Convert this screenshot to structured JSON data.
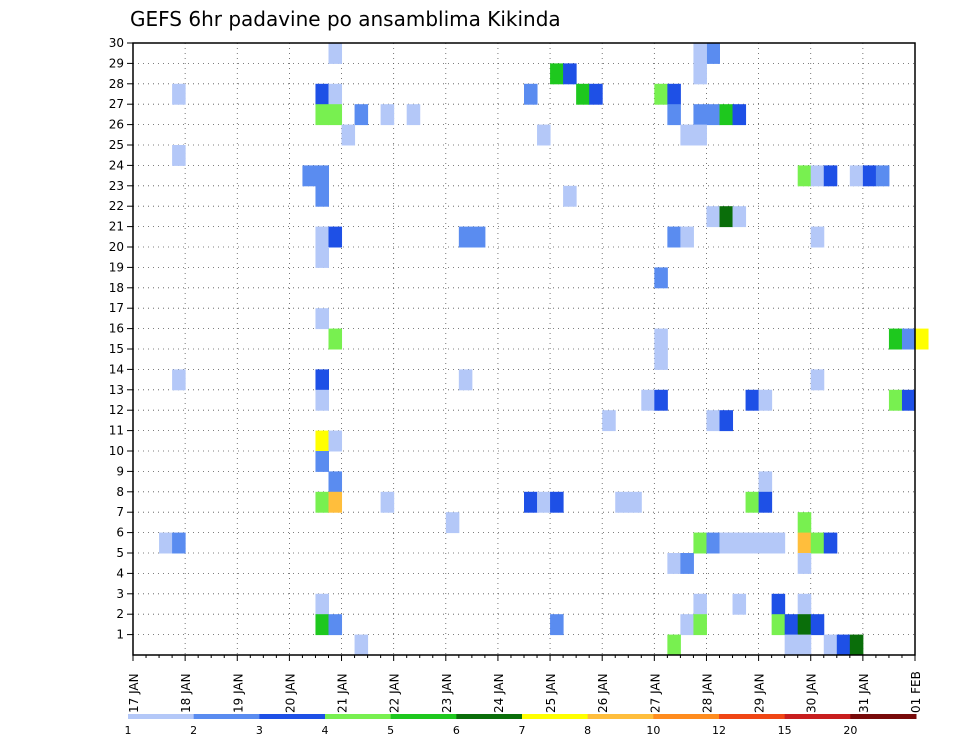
{
  "chart_data": {
    "type": "heatmap",
    "title": "GEFS 6hr padavine po ansamblima Kikinda",
    "xlabel": "",
    "ylabel": "",
    "x_ticks": [
      "17 JAN",
      "18 JAN",
      "19 JAN",
      "20 JAN",
      "21 JAN",
      "22 JAN",
      "23 JAN",
      "24 JAN",
      "25 JAN",
      "26 JAN",
      "27 JAN",
      "28 JAN",
      "29 JAN",
      "30 JAN",
      "31 JAN",
      "01 FEB"
    ],
    "xlim": [
      "17 JAN 00Z",
      "01 FEB 00Z"
    ],
    "x_step_hours": 6,
    "y_ticks": [
      "1",
      "2",
      "3",
      "4",
      "5",
      "6",
      "7",
      "8",
      "9",
      "10",
      "11",
      "12",
      "13",
      "14",
      "15",
      "16",
      "17",
      "18",
      "19",
      "20",
      "21",
      "22",
      "23",
      "24",
      "25",
      "26",
      "27",
      "28",
      "29",
      "30"
    ],
    "ylim": [
      0,
      30
    ],
    "grid": true,
    "legend": {
      "placement": "bottom",
      "labels": [
        "1",
        "2",
        "3",
        "4",
        "5",
        "6",
        "7",
        "8",
        "10",
        "12",
        "15",
        "20"
      ],
      "colors": [
        "#b4c8f8",
        "#5a8cf0",
        "#1e50e6",
        "#78f050",
        "#1ec81e",
        "#0a6e0a",
        "#ffff00",
        "#ffbe3c",
        "#ff8c1e",
        "#f04614",
        "#c81e1e",
        "#780a0a"
      ]
    },
    "cells": [
      {
        "m": 29,
        "x": "20 JAN 18Z",
        "c": 1
      },
      {
        "m": 29,
        "x": "28 JAN 00Z",
        "c": 2
      },
      {
        "m": 29,
        "x": "27 JAN 18Z",
        "c": 1
      },
      {
        "m": 28,
        "x": "25 JAN 00Z",
        "c": 5
      },
      {
        "m": 28,
        "x": "25 JAN 06Z",
        "c": 3
      },
      {
        "m": 28,
        "x": "27 JAN 18Z",
        "c": 1
      },
      {
        "m": 27,
        "x": "17 JAN 18Z",
        "c": 1
      },
      {
        "m": 27,
        "x": "20 JAN 12Z",
        "c": 3
      },
      {
        "m": 27,
        "x": "20 JAN 18Z",
        "c": 1
      },
      {
        "m": 27,
        "x": "24 JAN 12Z",
        "c": 2
      },
      {
        "m": 27,
        "x": "25 JAN 12Z",
        "c": 5
      },
      {
        "m": 27,
        "x": "25 JAN 18Z",
        "c": 3
      },
      {
        "m": 27,
        "x": "27 JAN 00Z",
        "c": 4
      },
      {
        "m": 27,
        "x": "27 JAN 06Z",
        "c": 3
      },
      {
        "m": 26,
        "x": "20 JAN 12Z",
        "c": 4
      },
      {
        "m": 26,
        "x": "20 JAN 18Z",
        "c": 4
      },
      {
        "m": 26,
        "x": "21 JAN 06Z",
        "c": 2
      },
      {
        "m": 26,
        "x": "21 JAN 18Z",
        "c": 1
      },
      {
        "m": 26,
        "x": "22 JAN 06Z",
        "c": 1
      },
      {
        "m": 26,
        "x": "27 JAN 06Z",
        "c": 2
      },
      {
        "m": 26,
        "x": "27 JAN 18Z",
        "c": 2
      },
      {
        "m": 26,
        "x": "28 JAN 00Z",
        "c": 2
      },
      {
        "m": 26,
        "x": "28 JAN 06Z",
        "c": 5
      },
      {
        "m": 26,
        "x": "28 JAN 12Z",
        "c": 3
      },
      {
        "m": 25,
        "x": "21 JAN 00Z",
        "c": 1
      },
      {
        "m": 25,
        "x": "24 JAN 18Z",
        "c": 1
      },
      {
        "m": 25,
        "x": "27 JAN 12Z",
        "c": 1
      },
      {
        "m": 25,
        "x": "27 JAN 18Z",
        "c": 1
      },
      {
        "m": 24,
        "x": "17 JAN 18Z",
        "c": 1
      },
      {
        "m": 23,
        "x": "20 JAN 06Z",
        "c": 2
      },
      {
        "m": 23,
        "x": "20 JAN 12Z",
        "c": 2
      },
      {
        "m": 23,
        "x": "29 JAN 18Z",
        "c": 4
      },
      {
        "m": 23,
        "x": "30 JAN 00Z",
        "c": 1
      },
      {
        "m": 23,
        "x": "30 JAN 06Z",
        "c": 3
      },
      {
        "m": 23,
        "x": "30 JAN 18Z",
        "c": 1
      },
      {
        "m": 23,
        "x": "31 JAN 00Z",
        "c": 3
      },
      {
        "m": 23,
        "x": "31 JAN 06Z",
        "c": 2
      },
      {
        "m": 22,
        "x": "20 JAN 12Z",
        "c": 2
      },
      {
        "m": 22,
        "x": "25 JAN 06Z",
        "c": 1
      },
      {
        "m": 21,
        "x": "28 JAN 00Z",
        "c": 1
      },
      {
        "m": 21,
        "x": "28 JAN 06Z",
        "c": 6
      },
      {
        "m": 21,
        "x": "28 JAN 12Z",
        "c": 1
      },
      {
        "m": 20,
        "x": "20 JAN 12Z",
        "c": 1
      },
      {
        "m": 20,
        "x": "20 JAN 18Z",
        "c": 3
      },
      {
        "m": 20,
        "x": "23 JAN 06Z",
        "c": 2
      },
      {
        "m": 20,
        "x": "23 JAN 12Z",
        "c": 2
      },
      {
        "m": 20,
        "x": "27 JAN 06Z",
        "c": 2
      },
      {
        "m": 20,
        "x": "27 JAN 12Z",
        "c": 1
      },
      {
        "m": 20,
        "x": "30 JAN 00Z",
        "c": 1
      },
      {
        "m": 19,
        "x": "20 JAN 12Z",
        "c": 1
      },
      {
        "m": 18,
        "x": "27 JAN 00Z",
        "c": 2
      },
      {
        "m": 16,
        "x": "20 JAN 12Z",
        "c": 1
      },
      {
        "m": 15,
        "x": "20 JAN 18Z",
        "c": 4
      },
      {
        "m": 15,
        "x": "27 JAN 00Z",
        "c": 1
      },
      {
        "m": 15,
        "x": "31 JAN 12Z",
        "c": 5
      },
      {
        "m": 15,
        "x": "31 JAN 18Z",
        "c": 2
      },
      {
        "m": 15,
        "x": "01 FEB 00Z",
        "c": 7
      },
      {
        "m": 14,
        "x": "27 JAN 00Z",
        "c": 1
      },
      {
        "m": 13,
        "x": "17 JAN 18Z",
        "c": 1
      },
      {
        "m": 13,
        "x": "20 JAN 12Z",
        "c": 3
      },
      {
        "m": 13,
        "x": "23 JAN 06Z",
        "c": 1
      },
      {
        "m": 13,
        "x": "30 JAN 00Z",
        "c": 1
      },
      {
        "m": 12,
        "x": "20 JAN 12Z",
        "c": 1
      },
      {
        "m": 12,
        "x": "26 JAN 18Z",
        "c": 1
      },
      {
        "m": 12,
        "x": "27 JAN 00Z",
        "c": 3
      },
      {
        "m": 12,
        "x": "28 JAN 18Z",
        "c": 3
      },
      {
        "m": 12,
        "x": "29 JAN 00Z",
        "c": 1
      },
      {
        "m": 12,
        "x": "31 JAN 12Z",
        "c": 4
      },
      {
        "m": 12,
        "x": "31 JAN 18Z",
        "c": 3
      },
      {
        "m": 11,
        "x": "26 JAN 00Z",
        "c": 1
      },
      {
        "m": 11,
        "x": "28 JAN 00Z",
        "c": 1
      },
      {
        "m": 11,
        "x": "28 JAN 06Z",
        "c": 3
      },
      {
        "m": 10,
        "x": "20 JAN 12Z",
        "c": 7
      },
      {
        "m": 10,
        "x": "20 JAN 18Z",
        "c": 1
      },
      {
        "m": 9,
        "x": "20 JAN 12Z",
        "c": 2
      },
      {
        "m": 8,
        "x": "20 JAN 18Z",
        "c": 2
      },
      {
        "m": 8,
        "x": "29 JAN 00Z",
        "c": 1
      },
      {
        "m": 7,
        "x": "20 JAN 12Z",
        "c": 4
      },
      {
        "m": 7,
        "x": "20 JAN 18Z",
        "c": 8
      },
      {
        "m": 7,
        "x": "21 JAN 18Z",
        "c": 1
      },
      {
        "m": 7,
        "x": "24 JAN 12Z",
        "c": 3
      },
      {
        "m": 7,
        "x": "24 JAN 18Z",
        "c": 1
      },
      {
        "m": 7,
        "x": "25 JAN 00Z",
        "c": 3
      },
      {
        "m": 7,
        "x": "26 JAN 06Z",
        "c": 1
      },
      {
        "m": 7,
        "x": "26 JAN 12Z",
        "c": 1
      },
      {
        "m": 7,
        "x": "28 JAN 18Z",
        "c": 4
      },
      {
        "m": 7,
        "x": "29 JAN 00Z",
        "c": 3
      },
      {
        "m": 6,
        "x": "23 JAN 00Z",
        "c": 1
      },
      {
        "m": 6,
        "x": "29 JAN 18Z",
        "c": 4
      },
      {
        "m": 5,
        "x": "17 JAN 12Z",
        "c": 1
      },
      {
        "m": 5,
        "x": "17 JAN 18Z",
        "c": 2
      },
      {
        "m": 5,
        "x": "27 JAN 18Z",
        "c": 4
      },
      {
        "m": 5,
        "x": "28 JAN 00Z",
        "c": 2
      },
      {
        "m": 5,
        "x": "28 JAN 06Z",
        "c": 1
      },
      {
        "m": 5,
        "x": "28 JAN 12Z",
        "c": 1
      },
      {
        "m": 5,
        "x": "28 JAN 18Z",
        "c": 1
      },
      {
        "m": 5,
        "x": "29 JAN 00Z",
        "c": 1
      },
      {
        "m": 5,
        "x": "29 JAN 06Z",
        "c": 1
      },
      {
        "m": 5,
        "x": "29 JAN 18Z",
        "c": 8
      },
      {
        "m": 5,
        "x": "30 JAN 00Z",
        "c": 4
      },
      {
        "m": 5,
        "x": "30 JAN 06Z",
        "c": 3
      },
      {
        "m": 4,
        "x": "27 JAN 06Z",
        "c": 1
      },
      {
        "m": 4,
        "x": "27 JAN 12Z",
        "c": 2
      },
      {
        "m": 4,
        "x": "29 JAN 18Z",
        "c": 1
      },
      {
        "m": 2,
        "x": "20 JAN 12Z",
        "c": 1
      },
      {
        "m": 2,
        "x": "27 JAN 18Z",
        "c": 1
      },
      {
        "m": 2,
        "x": "28 JAN 12Z",
        "c": 1
      },
      {
        "m": 2,
        "x": "29 JAN 06Z",
        "c": 3
      },
      {
        "m": 2,
        "x": "29 JAN 18Z",
        "c": 1
      },
      {
        "m": 1,
        "x": "20 JAN 12Z",
        "c": 5
      },
      {
        "m": 1,
        "x": "20 JAN 18Z",
        "c": 2
      },
      {
        "m": 1,
        "x": "25 JAN 00Z",
        "c": 2
      },
      {
        "m": 1,
        "x": "27 JAN 12Z",
        "c": 1
      },
      {
        "m": 1,
        "x": "27 JAN 18Z",
        "c": 4
      },
      {
        "m": 1,
        "x": "29 JAN 06Z",
        "c": 4
      },
      {
        "m": 1,
        "x": "29 JAN 12Z",
        "c": 3
      },
      {
        "m": 1,
        "x": "29 JAN 18Z",
        "c": 6
      },
      {
        "m": 1,
        "x": "30 JAN 00Z",
        "c": 3
      },
      {
        "m": 0,
        "x": "21 JAN 06Z",
        "c": 1
      },
      {
        "m": 0,
        "x": "27 JAN 06Z",
        "c": 4
      },
      {
        "m": 0,
        "x": "29 JAN 12Z",
        "c": 1
      },
      {
        "m": 0,
        "x": "29 JAN 18Z",
        "c": 1
      },
      {
        "m": 0,
        "x": "30 JAN 06Z",
        "c": 1
      },
      {
        "m": 0,
        "x": "30 JAN 12Z",
        "c": 3
      },
      {
        "m": 0,
        "x": "30 JAN 18Z",
        "c": 6
      }
    ]
  }
}
